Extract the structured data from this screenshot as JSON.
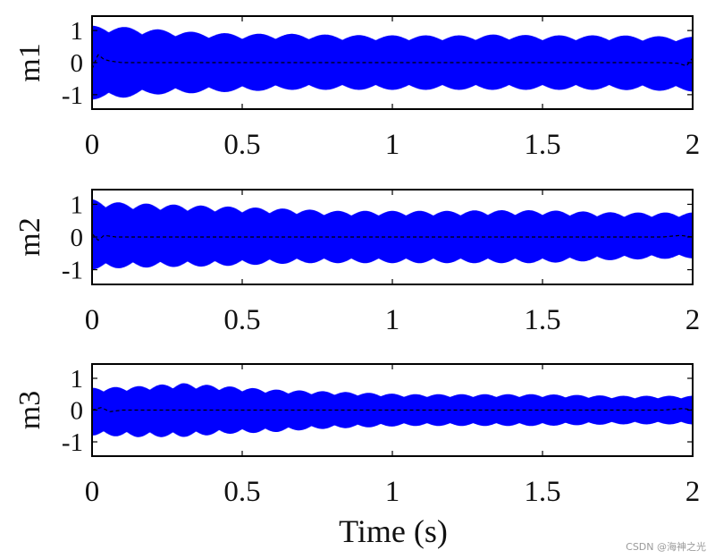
{
  "chart_data": {
    "type": "line",
    "x_tick_labels": [
      "0",
      "0.5",
      "1",
      "1.5",
      "2"
    ],
    "y_tick_labels": [
      "1",
      "0",
      "-1"
    ],
    "xlabel": "Time (s)",
    "xlim": [
      0,
      2
    ],
    "ylim": [
      -1.45,
      1.45
    ],
    "grid": false,
    "colors": {
      "signal": "#0000ff",
      "reference": "#000000",
      "axis": "#000000"
    },
    "panels": [
      {
        "ylabel": "m1",
        "signal_envelope": {
          "t": [
            0,
            0.05,
            0.2,
            0.35,
            0.5,
            0.65,
            0.75,
            0.85,
            0.95,
            1.05,
            1.15,
            1.25,
            1.35,
            1.5,
            1.75,
            2.0
          ],
          "max": [
            1.15,
            1.15,
            1.05,
            0.95,
            0.9,
            0.9,
            0.88,
            0.86,
            0.85,
            0.85,
            0.85,
            0.85,
            0.88,
            0.85,
            0.85,
            0.8
          ],
          "min": [
            -1.15,
            -1.15,
            -1.0,
            -0.95,
            -0.9,
            -0.85,
            -0.85,
            -0.85,
            -0.85,
            -0.85,
            -0.85,
            -0.85,
            -0.85,
            -0.85,
            -0.85,
            -0.9
          ]
        },
        "reference_line": {
          "t": [
            0,
            0.02,
            0.04,
            0.06,
            0.1,
            0.2,
            1.8,
            1.9,
            1.95,
            1.98,
            2.0
          ],
          "y": [
            -0.2,
            0.25,
            0.1,
            0.05,
            0.0,
            0.0,
            0.0,
            0.0,
            -0.02,
            -0.1,
            0.15
          ]
        }
      },
      {
        "ylabel": "m2",
        "signal_envelope": {
          "t": [
            0,
            0.1,
            0.25,
            0.4,
            0.55,
            0.7,
            0.8,
            0.9,
            1.0,
            1.1,
            1.2,
            1.3,
            1.5,
            1.75,
            2.0
          ],
          "max": [
            1.15,
            1.05,
            1.0,
            0.95,
            0.9,
            0.85,
            0.8,
            0.8,
            0.8,
            0.8,
            0.8,
            0.82,
            0.82,
            0.75,
            0.75
          ],
          "min": [
            -1.0,
            -0.95,
            -0.92,
            -0.9,
            -0.85,
            -0.8,
            -0.8,
            -0.8,
            -0.8,
            -0.8,
            -0.8,
            -0.8,
            -0.8,
            -0.7,
            -0.65
          ]
        },
        "reference_line": {
          "t": [
            0,
            0.02,
            0.04,
            0.08,
            0.2,
            1.9,
            1.96,
            2.0
          ],
          "y": [
            0.1,
            -0.1,
            0.05,
            0.0,
            0.0,
            0.0,
            0.05,
            0.0
          ]
        }
      },
      {
        "ylabel": "m3",
        "signal_envelope": {
          "t": [
            0,
            0.15,
            0.3,
            0.45,
            0.6,
            0.75,
            0.9,
            1.05,
            1.2,
            1.35,
            1.5,
            1.75,
            2.0
          ],
          "max": [
            0.7,
            0.75,
            0.85,
            0.75,
            0.65,
            0.6,
            0.55,
            0.5,
            0.5,
            0.5,
            0.5,
            0.45,
            0.45
          ],
          "min": [
            -0.8,
            -0.85,
            -0.85,
            -0.75,
            -0.7,
            -0.6,
            -0.55,
            -0.5,
            -0.5,
            -0.5,
            -0.5,
            -0.45,
            -0.45
          ]
        },
        "reference_line": {
          "t": [
            0,
            0.03,
            0.06,
            0.1,
            0.2,
            1.9,
            1.97,
            2.0
          ],
          "y": [
            0.0,
            0.08,
            -0.05,
            0.0,
            0.0,
            0.0,
            0.05,
            0.0
          ]
        }
      }
    ]
  },
  "watermark": "CSDN @海神之光"
}
